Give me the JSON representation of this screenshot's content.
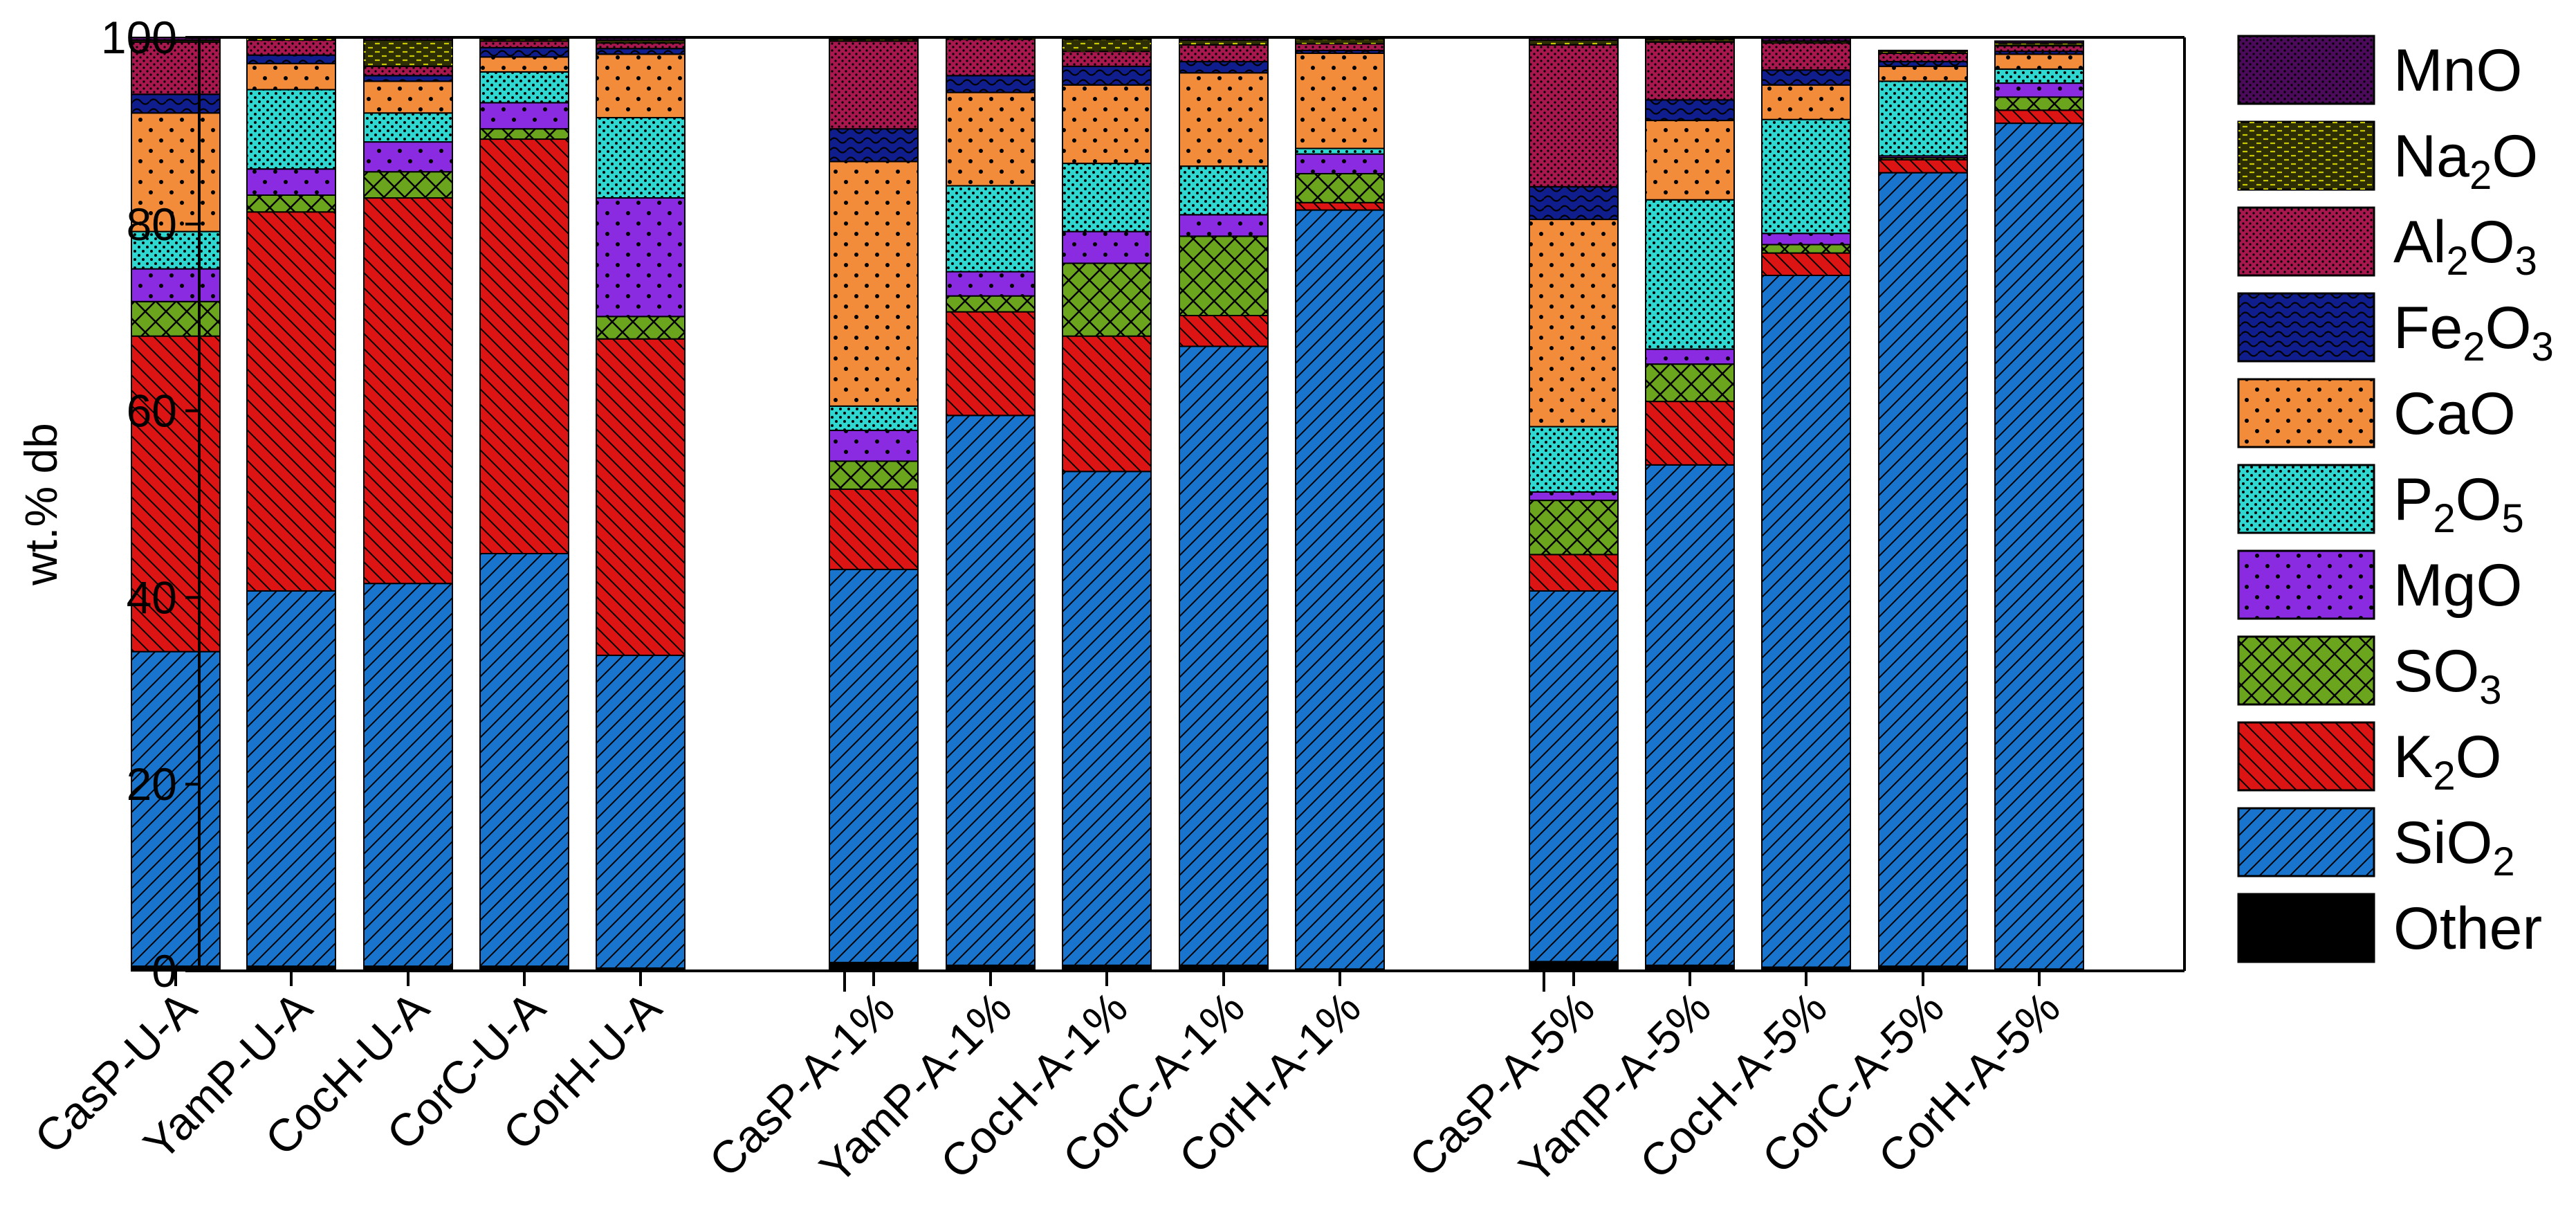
{
  "chart_data": {
    "type": "bar",
    "stacked": true,
    "title": "",
    "xlabel": "",
    "ylabel": "wt.% db",
    "ylim": [
      0,
      100
    ],
    "yticks": [
      0,
      20,
      40,
      60,
      80,
      100
    ],
    "legend_position": "right",
    "categories": [
      "CasP-U-A",
      "YamP-U-A",
      "CocH-U-A",
      "CorC-U-A",
      "CorH-U-A",
      "CasP-A-1%",
      "YamP-A-1%",
      "CocH-A-1%",
      "CorC-A-1%",
      "CorH-A-1%",
      "CasP-A-5%",
      "YamP-A-5%",
      "CocH-A-5%",
      "CorC-A-5%",
      "CorH-A-5%"
    ],
    "groups": [
      5,
      5,
      5
    ],
    "series": [
      {
        "name": "Other",
        "label_base": "Other",
        "label_sub": "",
        "color": "#000000",
        "values": [
          0.5,
          0.5,
          0.5,
          0.5,
          0.3,
          0.9,
          0.6,
          0.6,
          0.6,
          0.2,
          1.0,
          0.6,
          0.4,
          0.5,
          0.2
        ]
      },
      {
        "name": "SiO2",
        "label_base": "SiO",
        "label_sub": "2",
        "color": "#1874CD",
        "values": [
          33.7,
          40.2,
          41.0,
          44.2,
          33.5,
          42.1,
          58.9,
          52.9,
          66.3,
          81.3,
          39.7,
          53.6,
          74.1,
          85.0,
          90.6
        ]
      },
      {
        "name": "K2O",
        "label_base": "K",
        "label_sub": "2",
        "label_tail": "O",
        "color": "#DC1414",
        "values": [
          33.8,
          40.6,
          41.3,
          44.4,
          33.9,
          8.6,
          11.1,
          14.5,
          3.3,
          0.8,
          3.9,
          6.8,
          2.4,
          1.4,
          1.4
        ]
      },
      {
        "name": "SO3",
        "label_base": "SO",
        "label_sub": "3",
        "color": "#6BA51E",
        "values": [
          3.7,
          1.8,
          2.8,
          1.1,
          2.4,
          3.0,
          1.7,
          7.8,
          8.5,
          3.1,
          5.8,
          4.0,
          0.9,
          0.2,
          1.4
        ]
      },
      {
        "name": "MgO",
        "label_base": "MgO",
        "label_sub": "",
        "color": "#8A2BE2",
        "values": [
          3.5,
          2.8,
          3.2,
          2.8,
          12.7,
          3.3,
          2.6,
          3.4,
          2.3,
          2.1,
          0.9,
          1.6,
          1.2,
          0.2,
          1.5
        ]
      },
      {
        "name": "P2O5",
        "label_base": "P",
        "label_sub": "2",
        "label_tail": "O",
        "label_sub2": "5",
        "color": "#2ED8D0",
        "values": [
          4.0,
          8.5,
          3.1,
          3.3,
          8.6,
          2.6,
          9.2,
          7.3,
          5.2,
          0.6,
          7.0,
          16.0,
          12.2,
          8.0,
          1.5
        ]
      },
      {
        "name": "CaO",
        "label_base": "CaO",
        "label_sub": "",
        "color": "#F28C3A",
        "values": [
          12.7,
          2.8,
          3.4,
          1.6,
          6.8,
          26.2,
          10.0,
          8.4,
          10.0,
          10.2,
          22.2,
          8.5,
          3.7,
          1.6,
          1.6
        ]
      },
      {
        "name": "Fe2O3",
        "label_base": "Fe",
        "label_sub": "2",
        "label_tail": "O",
        "label_sub2": "3",
        "color": "#0F1E8C",
        "values": [
          2.0,
          0.9,
          0.6,
          1.0,
          0.6,
          3.5,
          1.8,
          2.0,
          1.2,
          0.3,
          3.5,
          2.2,
          1.6,
          0.5,
          0.3
        ]
      },
      {
        "name": "Al2O3",
        "label_base": "Al",
        "label_sub": "2",
        "label_tail": "O",
        "label_sub2": "3",
        "color": "#A8184E",
        "values": [
          5.6,
          1.6,
          1.0,
          0.7,
          0.6,
          9.4,
          3.9,
          1.6,
          1.8,
          0.7,
          15.2,
          6.2,
          2.9,
          0.9,
          0.6
        ]
      },
      {
        "name": "Na2O",
        "label_base": "Na",
        "label_sub": "2",
        "label_tail": "O",
        "color": "#2E2E05",
        "values": [
          0.2,
          0.2,
          2.8,
          0.2,
          0.3,
          0.2,
          0.1,
          1.3,
          0.5,
          0.5,
          0.5,
          0.3,
          0.2,
          0.2,
          0.3
        ]
      },
      {
        "name": "MnO",
        "label_base": "MnO",
        "label_sub": "",
        "color": "#4B0A5A",
        "values": [
          0.3,
          0.1,
          0.3,
          0.2,
          0.3,
          0.2,
          0.1,
          0.2,
          0.3,
          0.2,
          0.3,
          0.2,
          0.4,
          0.1,
          0.2
        ]
      }
    ],
    "legend_order": [
      "MnO",
      "Na2O",
      "Al2O3",
      "Fe2O3",
      "CaO",
      "P2O5",
      "MgO",
      "SO3",
      "K2O",
      "SiO2",
      "Other"
    ]
  }
}
